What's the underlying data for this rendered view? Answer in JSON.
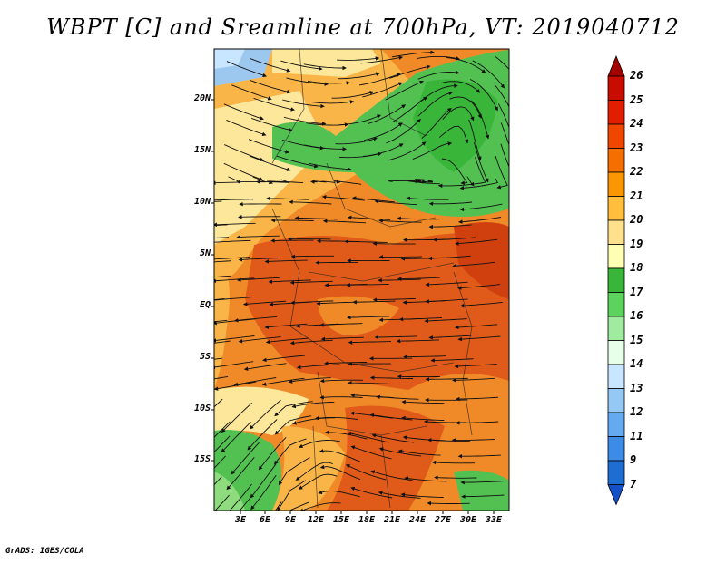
{
  "title": "WBPT [C] and Sreamline at 700hPa, VT: 2019040712",
  "credit": "GrADS: IGES/COLA",
  "lat_labels": [
    "20N",
    "15N",
    "10N",
    "5N",
    "EQ",
    "5S",
    "10S",
    "15S"
  ],
  "lon_labels": [
    "3E",
    "6E",
    "9E",
    "12E",
    "15E",
    "18E",
    "21E",
    "24E",
    "27E",
    "30E",
    "33E"
  ],
  "colorbar": {
    "labels": [
      "26",
      "25",
      "24",
      "23",
      "22",
      "21",
      "20",
      "19",
      "18",
      "17",
      "16",
      "15",
      "14",
      "13",
      "12",
      "11",
      "9",
      "7"
    ],
    "colors": [
      "#a50000",
      "#c80c00",
      "#e31e00",
      "#f04600",
      "#f56e00",
      "#fa9600",
      "#ffbe3c",
      "#ffe08c",
      "#ffffb4",
      "#39b539",
      "#5cd35c",
      "#a0eba0",
      "#e6ffe6",
      "#c8e6ff",
      "#96c8f5",
      "#64aaf0",
      "#3c8ce6",
      "#1e6ed2",
      "#1450c8"
    ]
  },
  "palette": {
    "warm_deep": "#e05a1a",
    "warm_mid": "#f08a28",
    "warm_light": "#fab548",
    "pale": "#fde79a",
    "green": "#52c152",
    "green_light": "#8fdc7f",
    "blue_light": "#9cc8f0"
  }
}
